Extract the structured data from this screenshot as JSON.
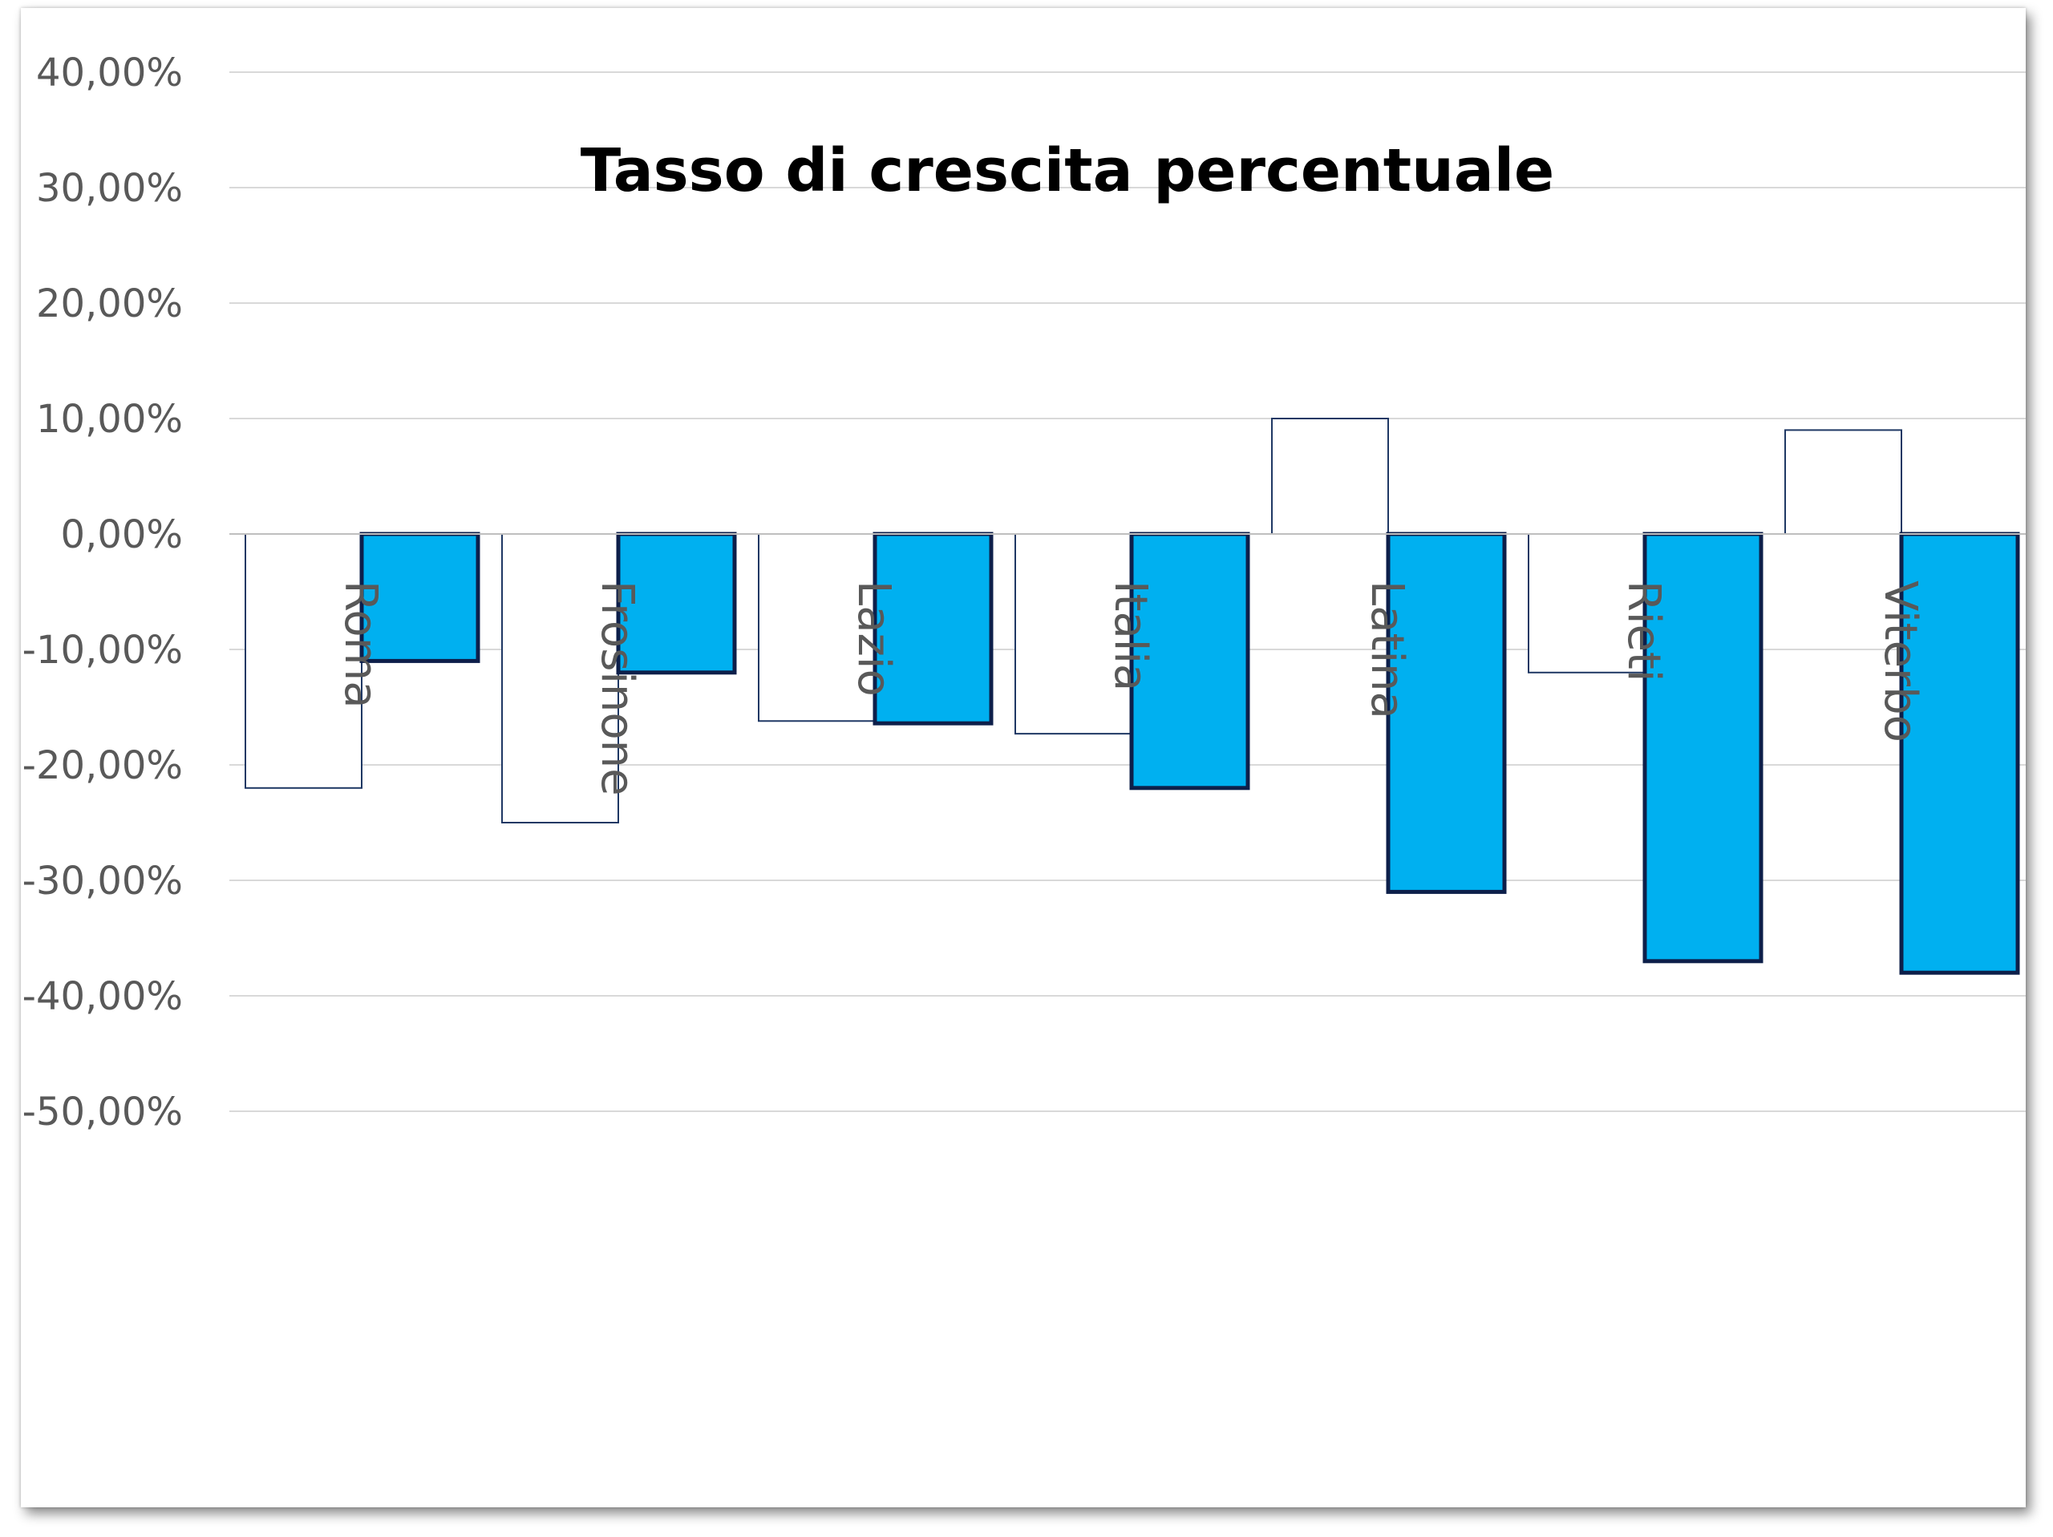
{
  "chart_data": {
    "type": "bar",
    "title": "Tasso di crescita percentuale",
    "xlabel": "",
    "ylabel": "",
    "ylim": [
      -50,
      40
    ],
    "y_ticks": [
      "40,00%",
      "30,00%",
      "20,00%",
      "10,00%",
      "0,00%",
      "-10,00%",
      "-20,00%",
      "-30,00%",
      "-40,00%",
      "-50,00%"
    ],
    "y_tick_values": [
      40,
      30,
      20,
      10,
      0,
      -10,
      -20,
      -30,
      -40,
      -50
    ],
    "grid": true,
    "categories": [
      "Roma",
      "Frosinone",
      "Lazio",
      "Italia",
      "Latina",
      "Rieti",
      "Viterbo"
    ],
    "series": [
      {
        "values": [
          -22,
          -25,
          -16.2,
          -17.3,
          10,
          -12,
          9
        ],
        "color": "#ffffff",
        "stroke": "#1f3864"
      },
      {
        "values": [
          -11,
          -12,
          -16.4,
          -22,
          -31,
          -37,
          -38
        ],
        "color": "#00b0f0",
        "stroke": "#0d1f4a"
      }
    ]
  }
}
